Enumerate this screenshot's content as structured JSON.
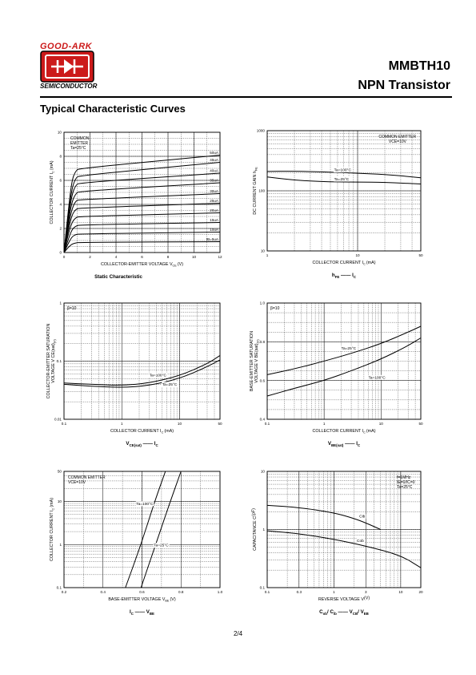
{
  "header": {
    "logo_top": "GOOD-ARK",
    "logo_bottom": "SEMICONDUCTOR",
    "part_number": "MMBTH10",
    "description": "NPN Transistor"
  },
  "section_title": "Typical Characteristic Curves",
  "page_number": "2/4",
  "colors": {
    "logo_red": "#cc1a1a",
    "ink": "#000000"
  },
  "chart_data": [
    {
      "type": "line",
      "xscale": "linear",
      "yscale": "linear",
      "xlim": [
        0,
        12
      ],
      "ylim": [
        0,
        10
      ],
      "xticks": [
        0,
        2,
        4,
        6,
        8,
        10,
        12
      ],
      "xtick_labels": [
        "0",
        "2",
        "4",
        "6",
        "8",
        "10",
        "12"
      ],
      "yticks": [
        0,
        2,
        4,
        6,
        8,
        10
      ],
      "ytick_labels": [
        "0",
        "2",
        "4",
        "6",
        "8",
        "10"
      ],
      "ylabel_parts": [
        "COLLECTOR CURRENT",
        "I",
        "C",
        "(mA)"
      ],
      "xlabel_parts": [
        "COLLECTOR-EMITTER VOLTAGE",
        "V",
        "CE",
        "(V)"
      ],
      "caption": "Static Characteristic",
      "caption_parts": [],
      "annotations": [
        "COMMON",
        "EMITTER",
        "Ta=25°C"
      ],
      "series": [
        {
          "name": "50uA",
          "x": [
            0,
            0.3,
            0.6,
            0.9,
            1.2,
            12
          ],
          "y": [
            0,
            3.2,
            6.0,
            6.8,
            7.0,
            8.1
          ]
        },
        {
          "name": "45uA",
          "x": [
            0,
            0.3,
            0.6,
            0.9,
            1.2,
            12
          ],
          "y": [
            0,
            2.9,
            5.3,
            6.2,
            6.4,
            7.5
          ]
        },
        {
          "name": "40uA",
          "x": [
            0,
            0.3,
            0.6,
            0.9,
            1.2,
            12
          ],
          "y": [
            0,
            2.6,
            4.8,
            5.6,
            5.8,
            6.6
          ]
        },
        {
          "name": "35uA",
          "x": [
            0,
            0.3,
            0.6,
            0.9,
            1.2,
            12
          ],
          "y": [
            0,
            2.3,
            4.2,
            4.9,
            5.1,
            5.8
          ]
        },
        {
          "name": "30uA",
          "x": [
            0,
            0.3,
            0.6,
            0.9,
            1.2,
            12
          ],
          "y": [
            0,
            2.0,
            3.6,
            4.3,
            4.4,
            4.9
          ]
        },
        {
          "name": "25uA",
          "x": [
            0,
            0.3,
            0.6,
            0.9,
            1.2,
            12
          ],
          "y": [
            0,
            1.7,
            3.1,
            3.6,
            3.7,
            4.1
          ]
        },
        {
          "name": "20uA",
          "x": [
            0,
            0.3,
            0.6,
            0.9,
            1.2,
            12
          ],
          "y": [
            0,
            1.4,
            2.5,
            2.9,
            3.0,
            3.3
          ]
        },
        {
          "name": "15uA",
          "x": [
            0,
            0.3,
            0.6,
            0.9,
            1.2,
            12
          ],
          "y": [
            0,
            1.0,
            1.9,
            2.2,
            2.3,
            2.5
          ]
        },
        {
          "name": "10uA",
          "x": [
            0,
            0.3,
            0.6,
            0.9,
            1.2,
            12
          ],
          "y": [
            0,
            0.7,
            1.3,
            1.5,
            1.55,
            1.7
          ]
        },
        {
          "name": "IB=5uA",
          "x": [
            0,
            0.3,
            0.6,
            0.9,
            1.2,
            12
          ],
          "y": [
            0,
            0.4,
            0.7,
            0.8,
            0.85,
            0.9
          ]
        }
      ]
    },
    {
      "type": "line",
      "xscale": "log",
      "yscale": "log",
      "xlim": [
        1,
        50
      ],
      "ylim": [
        10,
        1000
      ],
      "xticks": [
        1,
        10,
        50
      ],
      "xtick_labels": [
        "1",
        "10",
        "50"
      ],
      "yticks": [
        10,
        100,
        1000
      ],
      "ytick_labels": [
        "10",
        "100",
        "1000"
      ],
      "ylabel_parts": [
        "DC CURRENT GAIN",
        "h",
        "FE",
        ""
      ],
      "xlabel_parts": [
        "COLLECTOR CURRENT",
        "I",
        "C",
        "(mA)"
      ],
      "caption": "",
      "caption_parts": [
        "h",
        "FE",
        "——",
        "I",
        "C"
      ],
      "annotations": [
        "COMMON EMITTER",
        "VCE=10V"
      ],
      "series": [
        {
          "name": "Ta=100°C",
          "x": [
            1,
            2,
            5,
            10,
            20,
            50
          ],
          "y": [
            210,
            212,
            205,
            195,
            188,
            165
          ]
        },
        {
          "name": "Ta=25°C",
          "x": [
            1,
            2,
            5,
            10,
            20,
            50
          ],
          "y": [
            170,
            150,
            140,
            140,
            138,
            130
          ]
        }
      ]
    },
    {
      "type": "line",
      "xscale": "log",
      "yscale": "log",
      "xlim": [
        0.1,
        50
      ],
      "ylim": [
        0.01,
        1
      ],
      "xticks": [
        0.1,
        1,
        10,
        50
      ],
      "xtick_labels": [
        "0.1",
        "1",
        "10",
        "50"
      ],
      "yticks": [
        0.01,
        0.1,
        1
      ],
      "ytick_labels": [
        "0.01",
        "0.1",
        "1"
      ],
      "ylabel_parts": [
        "COLLECTOR-EMITTER SATURATION",
        "VOLTAGE",
        "V",
        "CE(sat)",
        "(V)"
      ],
      "xlabel_parts": [
        "COLLECTOR CURRENT",
        "I",
        "C",
        "(mA)"
      ],
      "caption": "",
      "caption_parts": [
        "V",
        "CE(sat)",
        "——",
        "I",
        "C"
      ],
      "annotations": [
        "β=10"
      ],
      "series": [
        {
          "name": "Ta=100°C",
          "x": [
            0.1,
            0.3,
            1,
            3,
            10,
            30,
            50
          ],
          "y": [
            0.042,
            0.04,
            0.038,
            0.042,
            0.056,
            0.09,
            0.125
          ]
        },
        {
          "name": "Ta=25°C",
          "x": [
            0.1,
            0.3,
            1,
            3,
            10,
            30,
            50
          ],
          "y": [
            0.04,
            0.037,
            0.035,
            0.038,
            0.05,
            0.08,
            0.105
          ]
        }
      ]
    },
    {
      "type": "line",
      "xscale": "log",
      "yscale": "linear",
      "xlim": [
        0.1,
        50
      ],
      "ylim": [
        0.4,
        1.0
      ],
      "xticks": [
        0.1,
        1,
        10,
        50
      ],
      "xtick_labels": [
        "0.1",
        "1",
        "10",
        "50"
      ],
      "yticks": [
        0.4,
        0.6,
        0.8,
        1.0
      ],
      "ytick_labels": [
        "0.4",
        "0.6",
        "0.8",
        "1.0"
      ],
      "ylabel_parts": [
        "BASE-EMITTER SATURATION",
        "VOLTAGE",
        "V",
        "BE(sat)",
        "(V)"
      ],
      "xlabel_parts": [
        "COLLECTOR CURRENT",
        "I",
        "C",
        "(mA)"
      ],
      "caption": "",
      "caption_parts": [
        "V",
        "BE(sat)",
        "——",
        "I",
        "C"
      ],
      "annotations": [
        "β=10"
      ],
      "series": [
        {
          "name": "Ta=25°C",
          "x": [
            0.1,
            0.3,
            1,
            3,
            10,
            30,
            50
          ],
          "y": [
            0.63,
            0.66,
            0.7,
            0.74,
            0.79,
            0.85,
            0.88
          ]
        },
        {
          "name": "Ta=100°C",
          "x": [
            0.1,
            0.3,
            1,
            3,
            10,
            30,
            50
          ],
          "y": [
            0.52,
            0.56,
            0.6,
            0.65,
            0.71,
            0.78,
            0.82
          ]
        }
      ]
    },
    {
      "type": "line",
      "xscale": "linear",
      "yscale": "log",
      "xlim": [
        0.2,
        1.0
      ],
      "ylim": [
        0.1,
        50
      ],
      "xticks": [
        0.2,
        0.4,
        0.6,
        0.8,
        1.0
      ],
      "xtick_labels": [
        "0.2",
        "0.4",
        "0.6",
        "0.8",
        "1.0"
      ],
      "yticks": [
        0.1,
        1,
        10,
        50
      ],
      "ytick_labels": [
        "0.1",
        "1",
        "10",
        "50"
      ],
      "ylabel_parts": [
        "COLLECTOR CURRENT",
        "I",
        "C",
        "(mA)"
      ],
      "xlabel_parts": [
        "BASE-EMITTER VOLTAGE",
        "V",
        "BE",
        "(V)"
      ],
      "caption": "",
      "caption_parts": [
        "I",
        "C",
        "——",
        "V",
        "BE"
      ],
      "annotations": [
        "COMMON EMITTER",
        "VCE=10V"
      ],
      "series": [
        {
          "name": "Ta=100°C",
          "x": [
            0.515,
            0.595,
            0.665,
            0.72
          ],
          "y": [
            0.1,
            1,
            10,
            50
          ]
        },
        {
          "name": "Ta=25°C",
          "x": [
            0.595,
            0.67,
            0.745,
            0.8
          ],
          "y": [
            0.1,
            1,
            10,
            50
          ]
        }
      ]
    },
    {
      "type": "line",
      "xscale": "log",
      "yscale": "log",
      "xlim": [
        0.1,
        20
      ],
      "ylim": [
        0.1,
        10
      ],
      "xticks": [
        0.1,
        0.3,
        1,
        3,
        10,
        20
      ],
      "xtick_labels": [
        "0.1",
        "0.3",
        "1",
        "3",
        "10",
        "20"
      ],
      "yticks": [
        0.1,
        1,
        10
      ],
      "ytick_labels": [
        "0.1",
        "1",
        "10"
      ],
      "ylabel_parts": [
        "CAPACITANCE",
        "C",
        "",
        "(pF)"
      ],
      "xlabel_parts": [
        "REVERSE VOLTAGE",
        "V",
        "",
        "(V)"
      ],
      "caption": "",
      "caption_parts": [
        "C",
        "ob",
        "/ C",
        "ib",
        "——",
        "V",
        "CB",
        "/ V",
        "EB"
      ],
      "annotations": [
        "f=1MHz",
        "IE=0/IC=0",
        "Ta=25°C"
      ],
      "series": [
        {
          "name": "Cib",
          "x": [
            0.1,
            0.3,
            1,
            2,
            3,
            5
          ],
          "y": [
            2.6,
            2.4,
            1.95,
            1.55,
            1.3,
            1.0
          ]
        },
        {
          "name": "Cob",
          "x": [
            0.1,
            0.3,
            1,
            3,
            10,
            20
          ],
          "y": [
            0.95,
            0.85,
            0.68,
            0.52,
            0.36,
            0.22
          ]
        }
      ]
    }
  ]
}
